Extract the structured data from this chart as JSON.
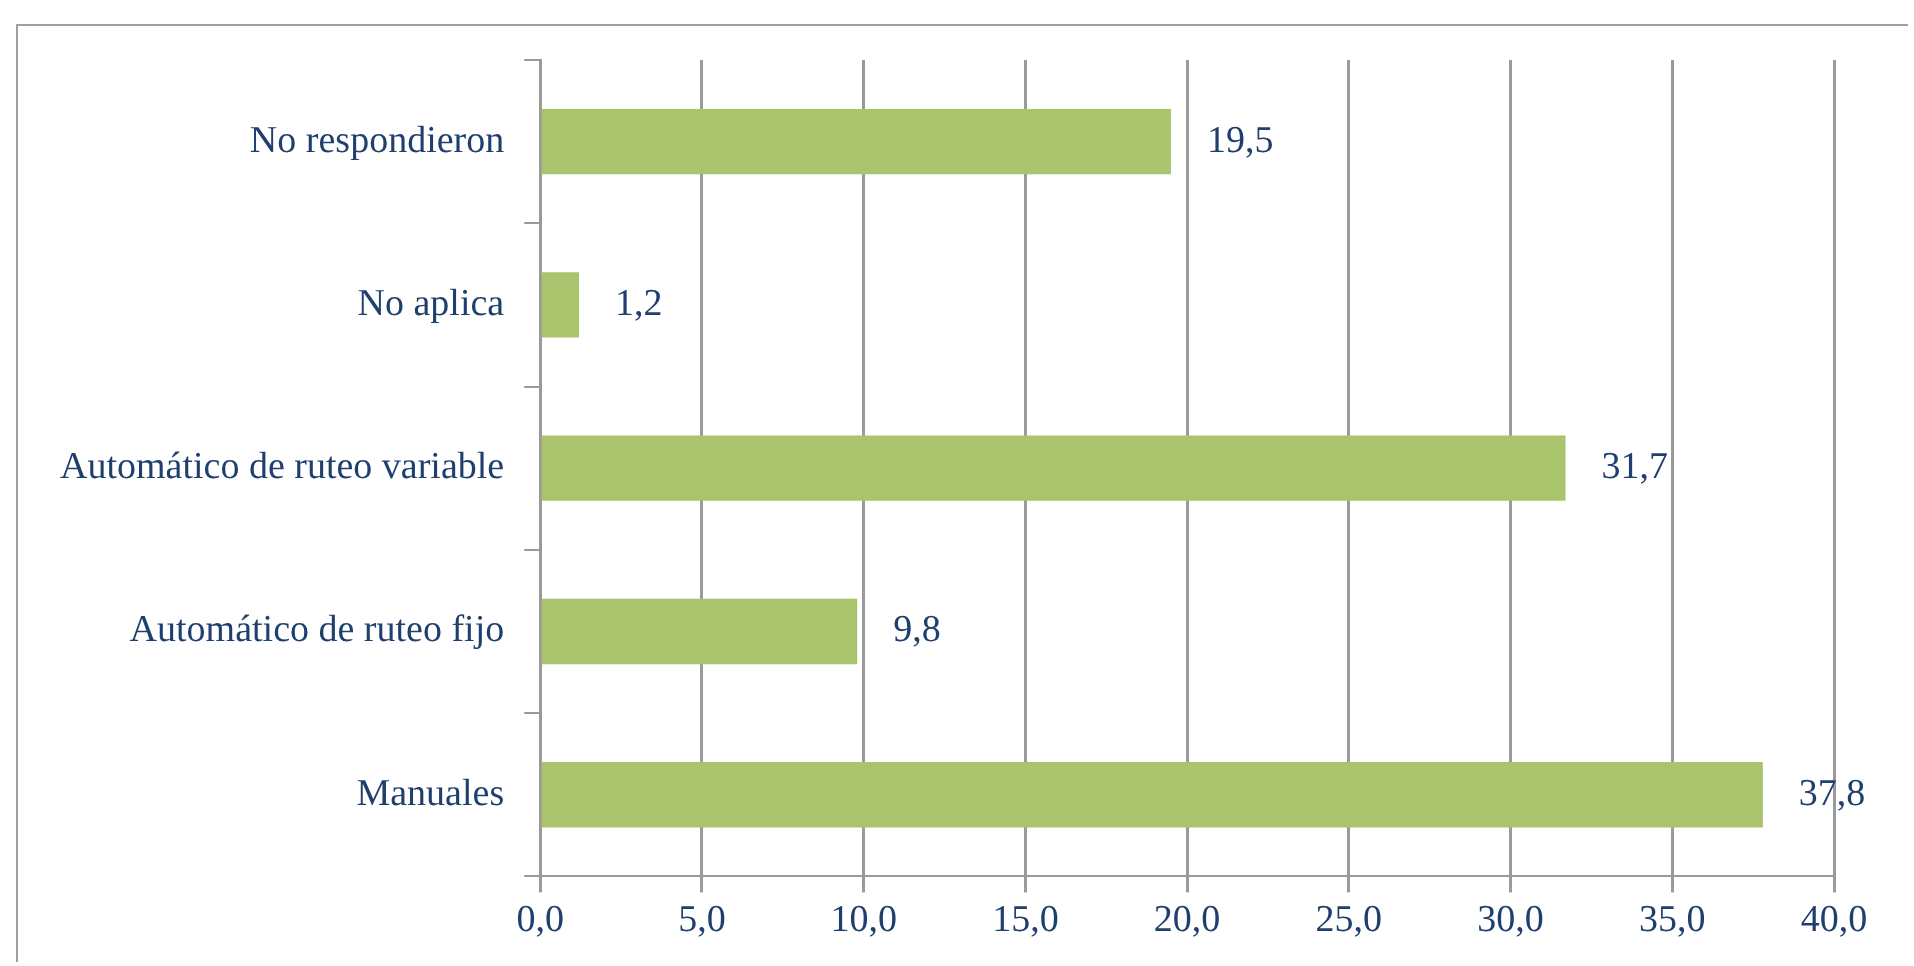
{
  "chart_data": {
    "type": "bar",
    "orientation": "horizontal",
    "categories": [
      "No respondieron",
      "No aplica",
      "Automático de ruteo variable",
      "Automático de ruteo fijo",
      "Manuales"
    ],
    "values": [
      19.5,
      1.2,
      31.7,
      9.8,
      37.8
    ],
    "value_labels": [
      "19,5",
      "1,2",
      "31,7",
      "9,8",
      "37,8"
    ],
    "color": "#a9c46c",
    "xlim": [
      0,
      40
    ],
    "xticks": [
      {
        "value": 0,
        "label": "0,0"
      },
      {
        "value": 5,
        "label": "5,0"
      },
      {
        "value": 10,
        "label": "10,0"
      },
      {
        "value": 15,
        "label": "15,0"
      },
      {
        "value": 20,
        "label": "20,0"
      },
      {
        "value": 25,
        "label": "25,0"
      },
      {
        "value": 30,
        "label": "30,0"
      },
      {
        "value": 35,
        "label": "35,0"
      },
      {
        "value": 40,
        "label": "40,0"
      }
    ],
    "grid": "x",
    "legend": false
  }
}
